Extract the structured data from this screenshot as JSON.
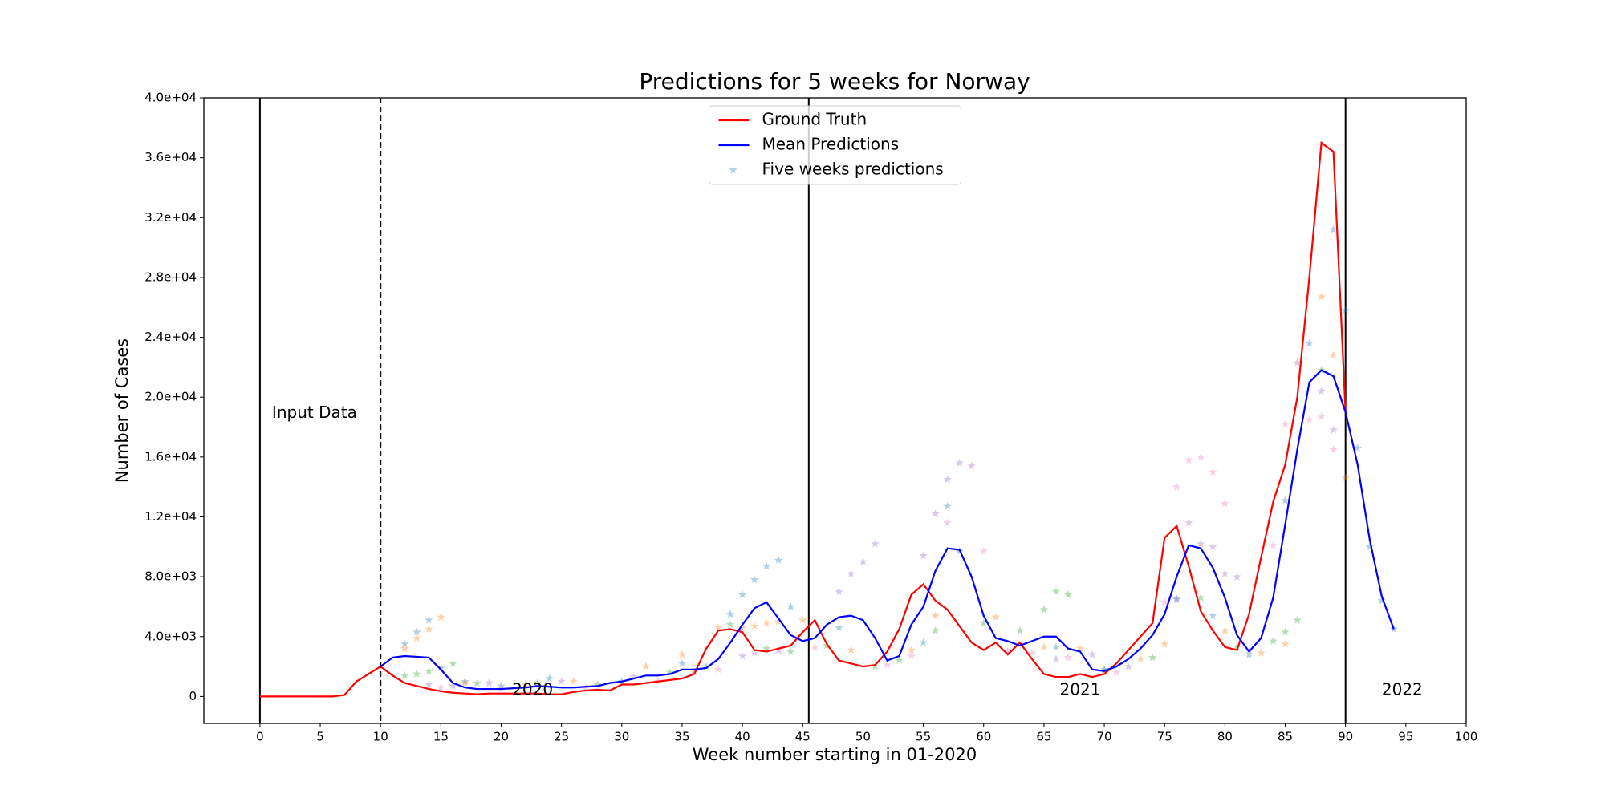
{
  "chart_data": {
    "type": "line",
    "title": "Predictions for 5 weeks for Norway",
    "xlabel": "Week number starting in 01-2020",
    "ylabel": "Number of Cases",
    "xlim": [
      -4.65,
      100
    ],
    "ylim": [
      -1800,
      40000
    ],
    "xticks": [
      0,
      5,
      10,
      15,
      20,
      25,
      30,
      35,
      40,
      45,
      50,
      55,
      60,
      65,
      70,
      75,
      80,
      85,
      90,
      95,
      100
    ],
    "yticks": [
      0,
      {
        "value": 4000,
        "label": "4.0e+03"
      },
      {
        "value": 8000,
        "label": "8.0e+03"
      },
      {
        "value": 12000,
        "label": "1.2e+04"
      },
      {
        "value": 16000,
        "label": "1.6e+04"
      },
      {
        "value": 20000,
        "label": "2.0e+04"
      },
      {
        "value": 24000,
        "label": "2.4e+04"
      },
      {
        "value": 28000,
        "label": "2.8e+04"
      },
      {
        "value": 32000,
        "label": "3.2e+04"
      },
      {
        "value": 36000,
        "label": "3.6e+04"
      },
      {
        "value": 40000,
        "label": "4.0e+04"
      }
    ],
    "grid": false,
    "legend": "upper center",
    "vlines": [
      {
        "x": 0,
        "style": "solid"
      },
      {
        "x": 10,
        "style": "dashed"
      },
      {
        "x": 45.5,
        "style": "solid"
      },
      {
        "x": 90,
        "style": "solid"
      }
    ],
    "annotations": [
      {
        "text": "Input Data",
        "x": 1,
        "y": 18900,
        "ha": "left"
      },
      {
        "text": "2020",
        "x": 22.6,
        "y": 400,
        "ha": "center"
      },
      {
        "text": "2021",
        "x": 68,
        "y": 400,
        "ha": "center"
      },
      {
        "text": "2022",
        "x": 94.7,
        "y": 400,
        "ha": "center"
      }
    ],
    "series": [
      {
        "name": "Ground Truth",
        "color": "#ff0000",
        "style": "line",
        "x": [
          0,
          1,
          2,
          3,
          4,
          5,
          6,
          7,
          8,
          9,
          10,
          11,
          12,
          13,
          14,
          15,
          16,
          17,
          18,
          19,
          20,
          21,
          22,
          23,
          24,
          25,
          26,
          27,
          28,
          29,
          30,
          31,
          32,
          33,
          34,
          35,
          36,
          37,
          38,
          39,
          40,
          41,
          42,
          43,
          44,
          45,
          46,
          47,
          48,
          49,
          50,
          51,
          52,
          53,
          54,
          55,
          56,
          57,
          58,
          59,
          60,
          61,
          62,
          63,
          64,
          65,
          66,
          67,
          68,
          69,
          70,
          71,
          72,
          73,
          74,
          75,
          76,
          77,
          78,
          79,
          80,
          81,
          82,
          83,
          84,
          85,
          86,
          87,
          88,
          89,
          90
        ],
        "values": [
          0,
          0,
          0,
          0,
          0,
          0,
          0,
          100,
          1000,
          1500,
          2000,
          1400,
          900,
          700,
          500,
          350,
          250,
          200,
          150,
          200,
          200,
          200,
          200,
          200,
          150,
          150,
          300,
          400,
          450,
          400,
          800,
          800,
          900,
          1000,
          1100,
          1200,
          1500,
          3200,
          4400,
          4500,
          4300,
          3100,
          3000,
          3200,
          3400,
          4300,
          5100,
          3500,
          2400,
          2200,
          2000,
          2100,
          3000,
          4500,
          6800,
          7500,
          6400,
          5800,
          4700,
          3600,
          3100,
          3600,
          2800,
          3600,
          2500,
          1500,
          1300,
          1300,
          1500,
          1300,
          1500,
          2200,
          3100,
          4000,
          4900,
          10600,
          11400,
          8700,
          5700,
          4400,
          3300,
          3100,
          5500,
          9300,
          13000,
          15500,
          20000,
          28000,
          37000,
          36400,
          19000
        ]
      },
      {
        "name": "Mean Predictions",
        "color": "#0000ff",
        "style": "line",
        "x": [
          10,
          11,
          12,
          13,
          14,
          15,
          16,
          17,
          18,
          19,
          20,
          21,
          22,
          23,
          24,
          25,
          26,
          27,
          28,
          29,
          30,
          31,
          32,
          33,
          34,
          35,
          36,
          37,
          38,
          39,
          40,
          41,
          42,
          43,
          44,
          45,
          46,
          47,
          48,
          49,
          50,
          51,
          52,
          53,
          54,
          55,
          56,
          57,
          58,
          59,
          60,
          61,
          62,
          63,
          64,
          65,
          66,
          67,
          68,
          69,
          70,
          71,
          72,
          73,
          74,
          75,
          76,
          77,
          78,
          79,
          80,
          81,
          82,
          83,
          84,
          85,
          86,
          87,
          88,
          89,
          90,
          91,
          92,
          93,
          94
        ],
        "values": [
          2000,
          2600,
          2700,
          2650,
          2600,
          1800,
          900,
          600,
          500,
          500,
          500,
          550,
          600,
          700,
          650,
          600,
          600,
          650,
          700,
          900,
          1000,
          1200,
          1400,
          1400,
          1500,
          1800,
          1800,
          1900,
          2500,
          3600,
          4800,
          5900,
          6300,
          5200,
          4100,
          3700,
          3900,
          4800,
          5300,
          5400,
          5100,
          3900,
          2400,
          2700,
          4800,
          6000,
          8400,
          9900,
          9800,
          8000,
          5400,
          3900,
          3700,
          3400,
          3700,
          4000,
          4000,
          3200,
          3000,
          1800,
          1700,
          2000,
          2500,
          3200,
          4100,
          5500,
          8000,
          10100,
          9900,
          8600,
          6600,
          4100,
          3000,
          3900,
          6600,
          11500,
          16500,
          21000,
          21800,
          21400,
          19000,
          15500,
          10500,
          6700,
          4500
        ]
      },
      {
        "name": "Five weeks predictions",
        "color": "#1f77b4",
        "style": "star",
        "opacity": 0.35,
        "groups": [
          {
            "color": "#1f77b4",
            "x": [
              12,
              13,
              14,
              15,
              17,
              20,
              24,
              30,
              35,
              39,
              40,
              41,
              42,
              43,
              44,
              48,
              55,
              57,
              58,
              66,
              70,
              76,
              79,
              82,
              85,
              87,
              89,
              90,
              91,
              92,
              93,
              94
            ],
            "values": [
              3500,
              4300,
              5100,
              1900,
              1000,
              700,
              1200,
              1000,
              2200,
              5500,
              6800,
              7800,
              8700,
              9100,
              6000,
              4600,
              3600,
              12700,
              9700,
              3300,
              1800,
              6500,
              5400,
              2800,
              13100,
              23600,
              31200,
              25800,
              16600,
              10000,
              6400,
              4500
            ]
          },
          {
            "color": "#ff7f0e",
            "x": [
              12,
              13,
              14,
              15,
              17,
              22,
              26,
              32,
              35,
              38,
              40,
              41,
              42,
              43,
              45,
              49,
              54,
              56,
              61,
              65,
              68,
              73,
              75,
              80,
              83,
              85,
              88,
              89,
              90
            ],
            "values": [
              3200,
              3900,
              4500,
              5300,
              900,
              800,
              1000,
              2000,
              2800,
              4600,
              4600,
              4700,
              4900,
              5000,
              5100,
              3100,
              3100,
              5400,
              5300,
              3300,
              3200,
              2500,
              3500,
              4400,
              2900,
              3500,
              26700,
              22800,
              14600
            ]
          },
          {
            "color": "#2ca02c",
            "x": [
              12,
              13,
              14,
              16,
              18,
              23,
              28,
              34,
              37,
              39,
              42,
              44,
              47,
              51,
              53,
              56,
              60,
              63,
              65,
              66,
              67,
              70,
              74,
              78,
              81,
              84,
              85,
              86,
              88
            ],
            "values": [
              1400,
              1500,
              1700,
              2200,
              900,
              900,
              800,
              1600,
              2000,
              4800,
              3200,
              3000,
              3400,
              2000,
              2400,
              4400,
              4900,
              4400,
              5800,
              7000,
              6800,
              1700,
              2600,
              6600,
              3300,
              3700,
              4300,
              5100,
              21800
            ]
          },
          {
            "color": "#9467bd",
            "x": [
              14,
              16,
              19,
              25,
              31,
              36,
              40,
              43,
              48,
              49,
              50,
              51,
              55,
              56,
              57,
              58,
              59,
              62,
              66,
              69,
              72,
              76,
              77,
              78,
              79,
              80,
              81,
              86,
              88,
              89
            ],
            "values": [
              800,
              700,
              900,
              1000,
              1300,
              1600,
              2700,
              3100,
              7000,
              8200,
              9000,
              10200,
              9400,
              12200,
              14500,
              15600,
              15400,
              3000,
              2500,
              2800,
              2000,
              6500,
              11600,
              10200,
              10000,
              8200,
              8000,
              22300,
              20400,
              17800
            ]
          },
          {
            "color": "#e377c2",
            "x": [
              15,
              20,
              27,
              33,
              38,
              41,
              46,
              52,
              54,
              57,
              60,
              64,
              67,
              71,
              75,
              76,
              77,
              78,
              79,
              80,
              82,
              84,
              85,
              87,
              88,
              89
            ],
            "values": [
              600,
              500,
              600,
              1000,
              1800,
              2900,
              3300,
              2100,
              2700,
              11600,
              9700,
              2900,
              2600,
              1600,
              6300,
              14000,
              15800,
              16000,
              15000,
              12900,
              3100,
              10100,
              18200,
              18500,
              18700,
              16500
            ]
          }
        ]
      }
    ]
  }
}
